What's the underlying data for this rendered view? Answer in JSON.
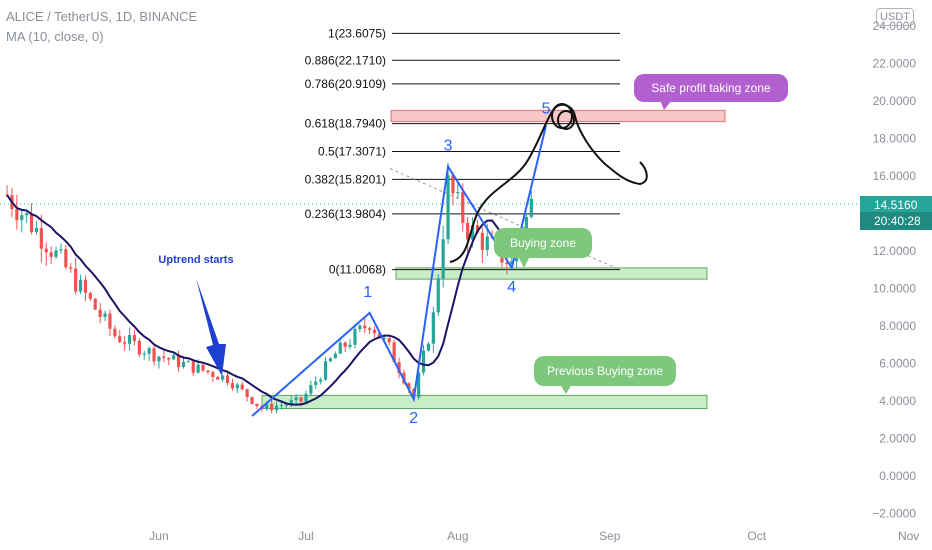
{
  "header": {
    "title": "ALICE / TetherUS, 1D, BINANCE",
    "indicator": "MA (10, close, 0)",
    "currency_badge": "USDT"
  },
  "price_tag": {
    "value": "14.5160",
    "time": "20:40:28"
  },
  "colors": {
    "up": "#26a69a",
    "down": "#ef5350",
    "ma": "#1a1464",
    "wave": "#2962ff",
    "zone_green": "#c9ecc9",
    "zone_red": "#f8c7c7",
    "callout_green": "#7ec87e",
    "callout_purple": "#b25fcf",
    "tag": "#26a69a"
  },
  "annotations": {
    "uptrend": "Uptrend starts",
    "safe_zone": "Safe profit taking zone",
    "buying_zone": "Buying zone",
    "prev_buying_zone": "Previous Buying zone",
    "waves": [
      "1",
      "2",
      "3",
      "4",
      "5"
    ]
  },
  "chart_data": {
    "type": "candlestick",
    "y_axis": {
      "ticks": [
        "24.0000",
        "22.0000",
        "20.0000",
        "18.0000",
        "16.0000",
        "14.0000",
        "12.0000",
        "10.0000",
        "8.0000",
        "6.0000",
        "4.0000",
        "2.0000",
        "0.0000",
        "−2.0000"
      ]
    },
    "x_axis": {
      "ticks": [
        "Jun",
        "Jul",
        "Aug",
        "Sep",
        "Oct",
        "Nov"
      ]
    },
    "fib_levels": [
      {
        "label": "1(23.6075)",
        "value": 23.6075
      },
      {
        "label": "0.886(22.1710)",
        "value": 22.171
      },
      {
        "label": "0.786(20.9109)",
        "value": 20.9109
      },
      {
        "label": "0.618(18.7940)",
        "value": 18.794
      },
      {
        "label": "0.5(17.3071)",
        "value": 17.3071
      },
      {
        "label": "0.382(15.8201)",
        "value": 15.8201
      },
      {
        "label": "0.236(13.9804)",
        "value": 13.9804
      },
      {
        "label": "0(11.0068)",
        "value": 11.0068
      }
    ],
    "current_price": 14.516,
    "zones": [
      {
        "name": "safe-profit-zone",
        "low": 18.9,
        "high": 19.5
      },
      {
        "name": "buying-zone",
        "low": 10.5,
        "high": 11.1
      },
      {
        "name": "previous-buying-zone",
        "low": 3.6,
        "high": 4.3
      }
    ],
    "wave_points": [
      {
        "label": "start",
        "day": 50,
        "price": 3.2
      },
      {
        "label": "1",
        "day": 74,
        "price": 8.7
      },
      {
        "label": "2",
        "day": 83,
        "price": 4.1
      },
      {
        "label": "3",
        "day": 90,
        "price": 16.5
      },
      {
        "label": "4",
        "day": 103,
        "price": 11.1
      },
      {
        "label": "5",
        "day": 110,
        "price": 18.7
      }
    ]
  }
}
